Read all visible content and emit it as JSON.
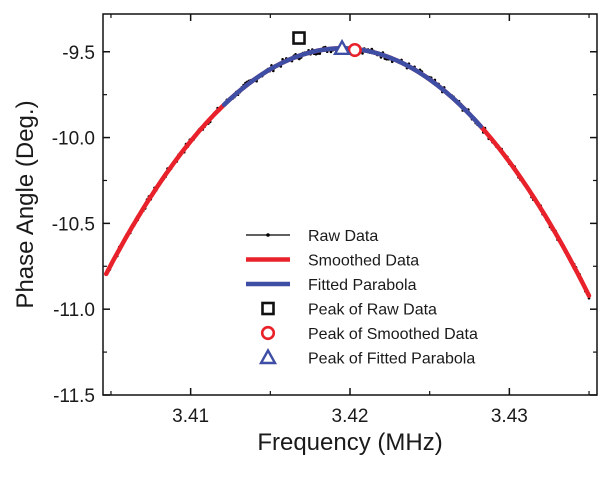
{
  "chart_data": {
    "type": "line",
    "xlabel": "Frequency (MHz)",
    "ylabel": "Phase Angle (Deg.)",
    "xlim": [
      3.4045,
      3.4355
    ],
    "ylim": [
      -11.5,
      -9.28
    ],
    "x_ticks": [
      3.41,
      3.42,
      3.43
    ],
    "x_tick_labels": [
      "3.41",
      "3.42",
      "3.43"
    ],
    "y_ticks": [
      -9.5,
      -10.0,
      -10.5,
      -11.0,
      -11.5
    ],
    "y_tick_labels": [
      "-9.5",
      "-10.0",
      "-10.5",
      "-11.0",
      "-11.5"
    ],
    "grid": false,
    "legend_position": "center",
    "parabola": {
      "vertex_x": 3.4195,
      "vertex_y": -9.48,
      "curvature": 6000
    },
    "series": [
      {
        "name": "Raw Data",
        "kind": "line-with-points",
        "color": "#000000",
        "x_range": [
          3.4047,
          3.435
        ],
        "noise": 0.02
      },
      {
        "name": "Smoothed Data",
        "kind": "line",
        "color": "#e8212a",
        "x_range": [
          3.4047,
          3.435
        ]
      },
      {
        "name": "Fitted Parabola",
        "kind": "line",
        "color": "#3f4ea5",
        "x_range": [
          3.4121,
          3.4282
        ]
      },
      {
        "name": "Peak of Raw Data",
        "kind": "marker",
        "marker": "square",
        "color": "#111111",
        "x": 3.4168,
        "y": -9.42
      },
      {
        "name": "Peak of Smoothed Data",
        "kind": "marker",
        "marker": "circle",
        "color": "#e8212a",
        "x": 3.4203,
        "y": -9.49
      },
      {
        "name": "Peak of Fitted Parabola",
        "kind": "marker",
        "marker": "triangle",
        "color": "#3f4ea5",
        "x": 3.4195,
        "y": -9.48
      }
    ]
  }
}
